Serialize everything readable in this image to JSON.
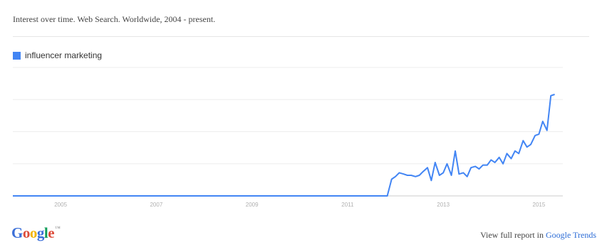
{
  "header": {
    "title": "Interest over time. Web Search. Worldwide, 2004 - present."
  },
  "colors": {
    "series": "#4285f4",
    "grid": "#eeeeee",
    "baseline": "#cccccc",
    "tick_text": "#b0b0b0"
  },
  "footer": {
    "logo": "Google",
    "logo_tm": "™",
    "link_prefix": "View full report in",
    "link_label": "Google Trends"
  },
  "chart_data": {
    "type": "line",
    "title": "",
    "xlabel": "",
    "ylabel": "",
    "xlim": [
      2004.0,
      2015.5
    ],
    "ylim": [
      0,
      100
    ],
    "x_ticks": [
      2005,
      2007,
      2009,
      2011,
      2013,
      2015
    ],
    "x_tick_labels": [
      "2005",
      "2007",
      "2009",
      "2011",
      "2013",
      "2015"
    ],
    "grid": true,
    "legend": "top-left",
    "series": [
      {
        "name": "influencer marketing",
        "x": [
          2004.0,
          2011.83,
          2011.92,
          2012.0,
          2012.08,
          2012.17,
          2012.25,
          2012.33,
          2012.42,
          2012.5,
          2012.58,
          2012.67,
          2012.75,
          2012.83,
          2012.92,
          2013.0,
          2013.08,
          2013.17,
          2013.25,
          2013.33,
          2013.42,
          2013.5,
          2013.58,
          2013.67,
          2013.75,
          2013.83,
          2013.92,
          2014.0,
          2014.08,
          2014.17,
          2014.25,
          2014.33,
          2014.42,
          2014.5,
          2014.58,
          2014.67,
          2014.75,
          2014.83,
          2014.92,
          2015.0,
          2015.08,
          2015.17,
          2015.25,
          2015.33
        ],
        "values": [
          0,
          0,
          13,
          15,
          18,
          17,
          16,
          16,
          15,
          16,
          19,
          22,
          12,
          26,
          16,
          18,
          25,
          16,
          35,
          17,
          18,
          15,
          22,
          23,
          21,
          24,
          24,
          28,
          26,
          30,
          25,
          33,
          29,
          35,
          33,
          43,
          38,
          40,
          47,
          48,
          58,
          51,
          78,
          79
        ]
      }
    ],
    "series_end": 99
  }
}
